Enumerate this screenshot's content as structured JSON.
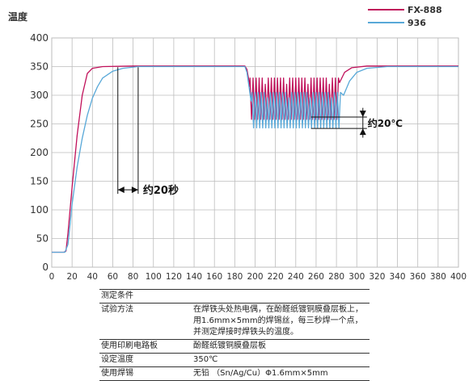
{
  "chart_data": {
    "type": "line",
    "ylabel": "温度",
    "xlim": [
      0,
      400
    ],
    "ylim": [
      0,
      400
    ],
    "xticks": [
      "0",
      "20",
      "40",
      "60",
      "80",
      "100",
      "120",
      "140",
      "160",
      "180",
      "200",
      "220",
      "240",
      "260",
      "280",
      "300",
      "320",
      "340",
      "360",
      "380",
      "400"
    ],
    "yticks": [
      "0",
      "50",
      "100",
      "150",
      "200",
      "250",
      "300",
      "350",
      "400"
    ],
    "grid": true,
    "legend_position": "top-right",
    "series": [
      {
        "name": "FX-888",
        "color": "#c0105a",
        "points": [
          [
            0,
            26
          ],
          [
            12,
            26
          ],
          [
            14,
            28
          ],
          [
            16,
            60
          ],
          [
            20,
            140
          ],
          [
            25,
            230
          ],
          [
            30,
            300
          ],
          [
            35,
            338
          ],
          [
            40,
            347
          ],
          [
            50,
            350
          ],
          [
            80,
            351
          ],
          [
            190,
            351
          ],
          [
            192,
            345
          ],
          [
            195,
            315
          ],
          [
            198,
            300
          ],
          [
            280,
            300
          ],
          [
            283,
            322
          ],
          [
            288,
            340
          ],
          [
            295,
            348
          ],
          [
            310,
            351
          ],
          [
            400,
            351
          ]
        ],
        "oscillation": {
          "from": 195,
          "to": 282,
          "period": 3,
          "low": 258,
          "high": 330
        }
      },
      {
        "name": "936",
        "color": "#58a8d8",
        "points": [
          [
            0,
            26
          ],
          [
            13,
            26
          ],
          [
            16,
            40
          ],
          [
            20,
            110
          ],
          [
            25,
            175
          ],
          [
            30,
            225
          ],
          [
            35,
            265
          ],
          [
            40,
            295
          ],
          [
            45,
            315
          ],
          [
            50,
            330
          ],
          [
            60,
            342
          ],
          [
            70,
            347
          ],
          [
            85,
            350
          ],
          [
            190,
            350
          ],
          [
            192,
            340
          ],
          [
            196,
            290
          ],
          [
            200,
            282
          ],
          [
            283,
            282
          ],
          [
            287,
            300
          ],
          [
            293,
            325
          ],
          [
            300,
            340
          ],
          [
            310,
            347
          ],
          [
            330,
            350
          ],
          [
            400,
            350
          ]
        ],
        "oscillation": {
          "from": 197,
          "to": 285,
          "period": 3,
          "low": 243,
          "high": 305
        }
      }
    ],
    "annotations": [
      {
        "text": "约20秒",
        "x": 85,
        "y": 135
      },
      {
        "text": "约20℃",
        "x": 285,
        "y": 258
      }
    ]
  },
  "conditions": {
    "title": "测定条件",
    "rows": [
      {
        "key": "试验方法",
        "value": "在焊铁头处热电偶，在酚醛纸镀铜膜叠层板上，用1.6mm×5mm的焊锡丝，每三秒焊一个点，并测定焊接时焊铁头的温度。"
      },
      {
        "key": "使用印刷电路板",
        "value": "酚醛纸镀铜膜叠层板"
      },
      {
        "key": "设定温度",
        "value": "350℃"
      },
      {
        "key": "使用焊锡",
        "value": "无铅 （Sn/Ag/Cu）Φ1.6mm×5mm"
      }
    ]
  }
}
